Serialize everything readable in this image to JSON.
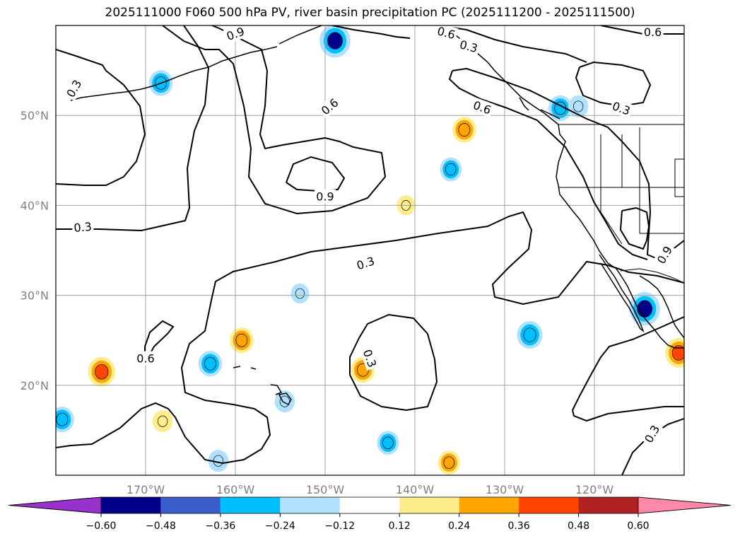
{
  "title": "2025111000 F060 500 hPa PV, river basin precipitation PC (2025111200 - 2025111500)",
  "map": {
    "lon_range": [
      -180,
      -110
    ],
    "lat_range": [
      10,
      60
    ],
    "lon_ticks": [
      {
        "lon": -170,
        "label": "170°W"
      },
      {
        "lon": -160,
        "label": "160°W"
      },
      {
        "lon": -150,
        "label": "150°W"
      },
      {
        "lon": -140,
        "label": "140°W"
      },
      {
        "lon": -130,
        "label": "130°W"
      },
      {
        "lon": -120,
        "label": "120°W"
      }
    ],
    "lat_ticks": [
      {
        "lat": 50,
        "label": "50°N"
      },
      {
        "lat": 40,
        "label": "40°N"
      },
      {
        "lat": 30,
        "label": "30°N"
      },
      {
        "lat": 20,
        "label": "20°N"
      }
    ],
    "grid": true,
    "pv_contour_levels": [
      "0.3",
      "0.6",
      "0.9"
    ],
    "contour_labels": [
      {
        "text": "0.3",
        "lon": -145.5,
        "lat": 33.6,
        "angle": -18
      },
      {
        "text": "0.3",
        "lon": -177,
        "lat": 37.6,
        "angle": -5
      },
      {
        "text": "0.6",
        "lon": -149.5,
        "lat": 51.0,
        "angle": -40
      },
      {
        "text": "0.9",
        "lon": -150,
        "lat": 41.0,
        "angle": 0
      },
      {
        "text": "0.6",
        "lon": -170,
        "lat": 23.0,
        "angle": 0
      },
      {
        "text": "0.3",
        "lon": -145,
        "lat": 23.0,
        "angle": 70
      },
      {
        "text": "0.6",
        "lon": -132.5,
        "lat": 50.9,
        "angle": 20
      },
      {
        "text": "0.3",
        "lon": -117,
        "lat": 50.8,
        "angle": 20
      },
      {
        "text": "0.9",
        "lon": -112.2,
        "lat": 34.5,
        "angle": -60
      },
      {
        "text": "0.3",
        "lon": -113.6,
        "lat": 14.6,
        "angle": -60
      },
      {
        "text": "0.6",
        "lon": -136.5,
        "lat": 59.2,
        "angle": 15
      },
      {
        "text": "0.3",
        "lon": -134,
        "lat": 57.7,
        "angle": 15
      },
      {
        "text": "0.6",
        "lon": -113.5,
        "lat": 59.3,
        "angle": 0
      },
      {
        "text": "0.9",
        "lon": -160,
        "lat": 59.1,
        "angle": -20
      },
      {
        "text": "0.3",
        "lon": -178,
        "lat": 53.0,
        "angle": -60
      }
    ],
    "precip_pc_blobs": [
      {
        "lon": -148.9,
        "lat": 58.3,
        "value": -0.5
      },
      {
        "lon": -168.3,
        "lat": 53.6,
        "value": -0.3
      },
      {
        "lon": -123.8,
        "lat": 50.8,
        "value": -0.3
      },
      {
        "lon": -121.8,
        "lat": 51.0,
        "value": -0.2
      },
      {
        "lon": -134.5,
        "lat": 48.4,
        "value": 0.3
      },
      {
        "lon": -136.0,
        "lat": 44.0,
        "value": -0.25
      },
      {
        "lon": -141.0,
        "lat": 40.0,
        "value": 0.15
      },
      {
        "lon": -152.8,
        "lat": 30.2,
        "value": -0.15
      },
      {
        "lon": -174.9,
        "lat": 21.5,
        "value": 0.4
      },
      {
        "lon": -159.3,
        "lat": 25.0,
        "value": 0.3
      },
      {
        "lon": -162.8,
        "lat": 22.4,
        "value": -0.3
      },
      {
        "lon": -145.8,
        "lat": 21.7,
        "value": 0.3
      },
      {
        "lon": -127.2,
        "lat": 25.6,
        "value": -0.35
      },
      {
        "lon": -114.4,
        "lat": 28.5,
        "value": -0.5
      },
      {
        "lon": -110.6,
        "lat": 23.6,
        "value": 0.4
      },
      {
        "lon": -154.5,
        "lat": 18.2,
        "value": -0.2
      },
      {
        "lon": -168.1,
        "lat": 16.0,
        "value": 0.2
      },
      {
        "lon": -179.3,
        "lat": 16.2,
        "value": -0.3
      },
      {
        "lon": -161.9,
        "lat": 11.6,
        "value": -0.2
      },
      {
        "lon": -143.0,
        "lat": 13.6,
        "value": -0.25
      },
      {
        "lon": -136.2,
        "lat": 11.4,
        "value": 0.25
      }
    ]
  },
  "colorbar": {
    "levels": [
      "-0.60",
      "-0.48",
      "-0.36",
      "-0.24",
      "-0.12",
      "0.12",
      "0.24",
      "0.36",
      "0.48",
      "0.60"
    ],
    "colors": [
      "#9932cc",
      "#00008b",
      "#3a5fcd",
      "#00bfff",
      "#b0e2ff",
      "#ffffff",
      "#ffec8b",
      "#ffa500",
      "#ff4500",
      "#b22222",
      "#ff88aa"
    ]
  }
}
